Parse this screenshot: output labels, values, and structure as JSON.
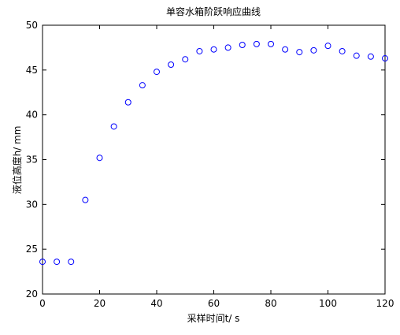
{
  "chart_data": {
    "type": "scatter",
    "title": "单容水箱阶跃响应曲线",
    "xlabel": "采样时间t/ s",
    "ylabel": "液位高度h/ mm",
    "x": [
      0,
      5,
      10,
      15,
      20,
      25,
      30,
      35,
      40,
      45,
      50,
      55,
      60,
      65,
      70,
      75,
      80,
      85,
      90,
      95,
      100,
      105,
      110,
      115,
      120
    ],
    "values": [
      23.6,
      23.6,
      23.6,
      30.5,
      35.2,
      38.7,
      41.4,
      43.3,
      44.8,
      45.6,
      46.2,
      47.1,
      47.3,
      47.5,
      47.8,
      47.9,
      47.9,
      47.3,
      47.0,
      47.2,
      47.7,
      47.1,
      46.6,
      46.5,
      46.3
    ],
    "color": "#0000ff",
    "xlim": [
      0,
      120
    ],
    "xticks": [
      0,
      20,
      40,
      60,
      80,
      100,
      120
    ],
    "ylim": [
      20,
      50
    ],
    "yticks": [
      20,
      25,
      30,
      35,
      40,
      45,
      50
    ]
  }
}
